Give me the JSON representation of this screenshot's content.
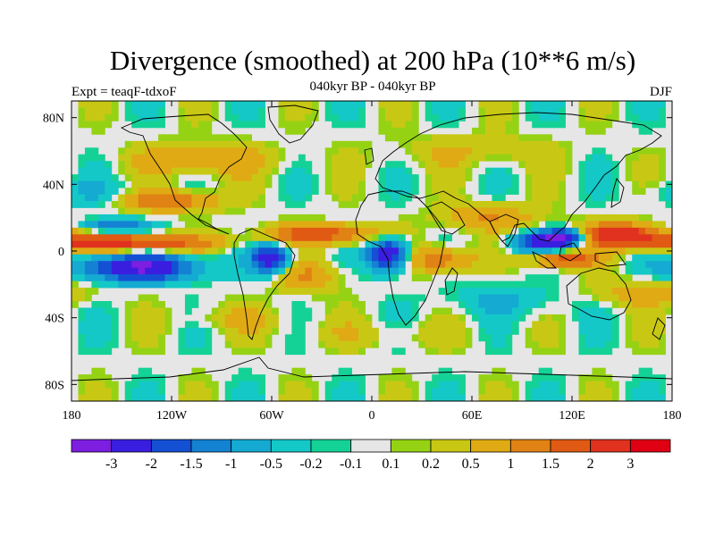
{
  "title": "Divergence (smoothed) at 200 hPa (10**6 m/s)",
  "subtitle": "040kyr BP - 040kyr BP",
  "left_label": "Expt = teaqF-tdxoF",
  "right_label": "DJF",
  "colors": {
    "ocean_fill": "#e6e6e6",
    "coast": "#000000"
  },
  "chart_data": {
    "type": "heatmap",
    "variable": "Divergence (smoothed) at 200 hPa",
    "units": "10**6 m/s",
    "season": "DJF",
    "lon_range": [
      -180,
      180
    ],
    "lat_range": [
      -90,
      90
    ],
    "x_ticks": [
      {
        "value": -180,
        "label": "180"
      },
      {
        "value": -120,
        "label": "120W"
      },
      {
        "value": -60,
        "label": "60W"
      },
      {
        "value": 0,
        "label": "0"
      },
      {
        "value": 60,
        "label": "60E"
      },
      {
        "value": 120,
        "label": "120E"
      },
      {
        "value": 180,
        "label": "180"
      }
    ],
    "y_ticks": [
      {
        "value": 80,
        "label": "80N"
      },
      {
        "value": 40,
        "label": "40N"
      },
      {
        "value": 0,
        "label": "0"
      },
      {
        "value": -40,
        "label": "40S"
      },
      {
        "value": -80,
        "label": "80S"
      }
    ],
    "colorbar": {
      "levels": [
        "-3",
        "-2",
        "-1.5",
        "-1",
        "-0.5",
        "-0.2",
        "-0.1",
        "0.1",
        "0.2",
        "0.5",
        "1",
        "1.5",
        "2",
        "3"
      ],
      "colors": [
        "#7d1ee0",
        "#3a1ee0",
        "#1450d4",
        "#1482d2",
        "#14aad2",
        "#14c8c8",
        "#14d296",
        "#e6e6e6",
        "#96d214",
        "#c8c814",
        "#e0aa14",
        "#e08214",
        "#e05a14",
        "#e0321e",
        "#e00014"
      ]
    },
    "features": [
      {
        "lon": -150,
        "lat": 5,
        "rx": 50,
        "ry": 5,
        "v": 2.5
      },
      {
        "lon": -140,
        "lat": -10,
        "rx": 35,
        "ry": 8,
        "v": -3.0
      },
      {
        "lon": -120,
        "lat": 30,
        "rx": 30,
        "ry": 6,
        "v": 1.5
      },
      {
        "lon": -155,
        "lat": 15,
        "rx": 20,
        "ry": 4,
        "v": -1.5
      },
      {
        "lon": -60,
        "lat": -5,
        "rx": 12,
        "ry": 9,
        "v": -2.5
      },
      {
        "lon": -30,
        "lat": 10,
        "rx": 35,
        "ry": 6,
        "v": 2.0
      },
      {
        "lon": -40,
        "lat": -15,
        "rx": 20,
        "ry": 10,
        "v": 1.0
      },
      {
        "lon": 10,
        "lat": -2,
        "rx": 12,
        "ry": 10,
        "v": -3.0
      },
      {
        "lon": 40,
        "lat": -5,
        "rx": 20,
        "ry": 8,
        "v": 1.5
      },
      {
        "lon": 100,
        "lat": 5,
        "rx": 18,
        "ry": 6,
        "v": -2.0
      },
      {
        "lon": 115,
        "lat": 8,
        "rx": 12,
        "ry": 5,
        "v": -3.0
      },
      {
        "lon": 150,
        "lat": 10,
        "rx": 25,
        "ry": 7,
        "v": 2.5
      },
      {
        "lon": 115,
        "lat": -5,
        "rx": 20,
        "ry": 5,
        "v": 2.0
      },
      {
        "lon": 70,
        "lat": 20,
        "rx": 30,
        "ry": 8,
        "v": 1.0
      },
      {
        "lon": -100,
        "lat": 55,
        "rx": 40,
        "ry": 10,
        "v": 1.0
      },
      {
        "lon": 60,
        "lat": 60,
        "rx": 50,
        "ry": 10,
        "v": 0.5
      },
      {
        "lon": -80,
        "lat": -40,
        "rx": 30,
        "ry": 8,
        "v": 0.5
      },
      {
        "lon": 80,
        "lat": -30,
        "rx": 40,
        "ry": 10,
        "v": -0.5
      },
      {
        "lon": 0,
        "lat": -50,
        "rx": 60,
        "ry": 8,
        "v": 0.3
      },
      {
        "lon": 160,
        "lat": -25,
        "rx": 30,
        "ry": 8,
        "v": 0.8
      },
      {
        "lon": -170,
        "lat": 35,
        "rx": 25,
        "ry": 8,
        "v": -0.5
      }
    ]
  }
}
